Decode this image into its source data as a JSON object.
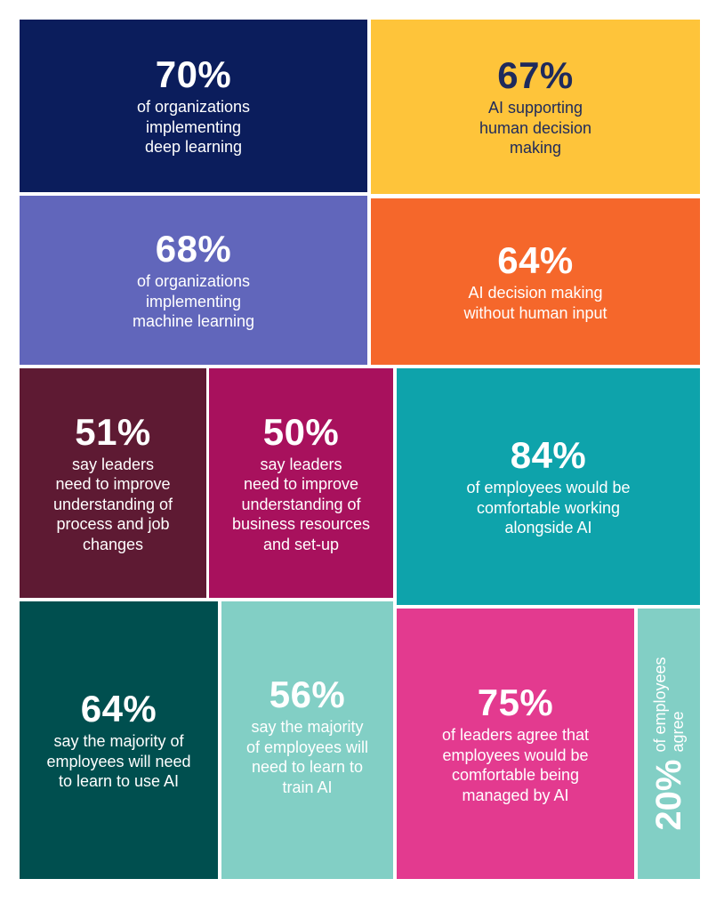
{
  "colors": {
    "navy": "#0b1d5c",
    "yellow": "#fec43a",
    "periwinkle": "#6166bb",
    "orange": "#f5672b",
    "maroon": "#5e1a33",
    "magenta": "#a8115d",
    "teal": "#0ea3ab",
    "dark_green": "#004f4f",
    "mint": "#82cfc5",
    "pink": "#e33a8f"
  },
  "tiles": [
    {
      "id": "deep-learning",
      "pct": "70%",
      "lines": [
        "of organizations",
        "implementing",
        "deep learning"
      ]
    },
    {
      "id": "ai-supporting",
      "pct": "67%",
      "lines": [
        "AI supporting",
        "human decision",
        "making"
      ]
    },
    {
      "id": "machine-learning",
      "pct": "68%",
      "lines": [
        "of organizations",
        "implementing",
        "machine learning"
      ]
    },
    {
      "id": "ai-without-human",
      "pct": "64%",
      "lines": [
        "AI decision making",
        "without human input"
      ]
    },
    {
      "id": "process-changes",
      "pct": "51%",
      "lines": [
        "say leaders",
        "need to improve",
        "understanding of",
        "process and job",
        "changes"
      ]
    },
    {
      "id": "business-resources",
      "pct": "50%",
      "lines": [
        "say leaders",
        "need to improve",
        "understanding of",
        "business resources",
        "and set-up"
      ]
    },
    {
      "id": "working-alongside",
      "pct": "84%",
      "lines": [
        "of employees would be",
        "comfortable working",
        "alongside AI"
      ]
    },
    {
      "id": "learn-to-use",
      "pct": "64%",
      "lines": [
        "say the majority of",
        "employees will need",
        "to learn to use AI"
      ]
    },
    {
      "id": "learn-to-train",
      "pct": "56%",
      "lines": [
        "say the majority",
        "of employees will",
        "need to learn to",
        "train AI"
      ]
    },
    {
      "id": "managed-by-ai",
      "pct": "75%",
      "lines": [
        "of leaders agree that",
        "employees would be",
        "comfortable being",
        "managed by AI"
      ]
    },
    {
      "id": "employees-agree",
      "pct": "20%",
      "lines": [
        "of employees",
        "agree"
      ]
    }
  ]
}
